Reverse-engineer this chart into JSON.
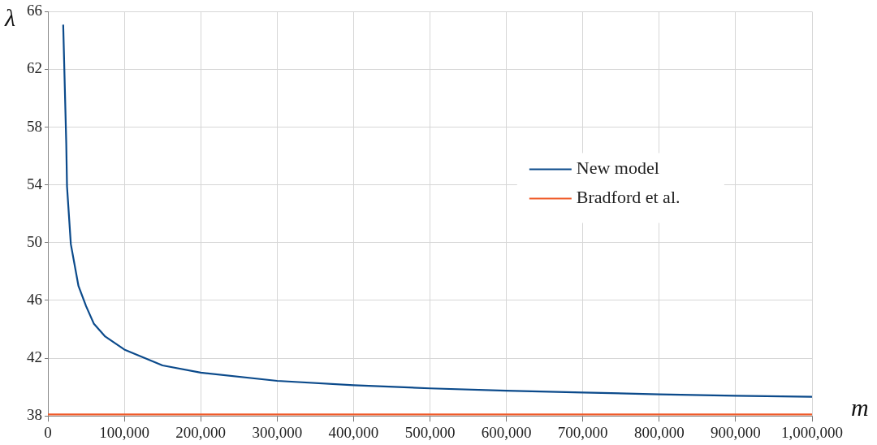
{
  "chart_data": {
    "type": "line",
    "xlabel": "m",
    "ylabel": "λ",
    "xlim": [
      0,
      1000000
    ],
    "xticks": [
      {
        "value": 0,
        "label": "0"
      },
      {
        "value": 100000,
        "label": "100,000"
      },
      {
        "value": 200000,
        "label": "200,000"
      },
      {
        "value": 300000,
        "label": "300,000"
      },
      {
        "value": 400000,
        "label": "400,000"
      },
      {
        "value": 500000,
        "label": "500,000"
      },
      {
        "value": 600000,
        "label": "600,000"
      },
      {
        "value": 700000,
        "label": "700,000"
      },
      {
        "value": 800000,
        "label": "800,000"
      },
      {
        "value": 900000,
        "label": "900,000"
      },
      {
        "value": 1000000,
        "label": "1,000,000"
      }
    ],
    "ylim": [
      38,
      66
    ],
    "yticks": [
      38,
      42,
      46,
      50,
      54,
      58,
      62,
      66
    ],
    "grid": true,
    "legend": "right",
    "marker": "none",
    "line_style": "solid",
    "series": [
      {
        "name": "New model",
        "color": "#0b4a8b",
        "x": [
          20000,
          24000,
          25000,
          30000,
          40000,
          50000,
          60000,
          75000,
          100000,
          150000,
          200000,
          300000,
          400000,
          500000,
          600000,
          700000,
          800000,
          900000,
          1000000
        ],
        "values": [
          65.1,
          56.9,
          53.9,
          49.9,
          47.0,
          45.6,
          44.4,
          43.5,
          42.6,
          41.5,
          41.0,
          40.43,
          40.13,
          39.91,
          39.75,
          39.62,
          39.5,
          39.4,
          39.33
        ]
      },
      {
        "name": "Bradford et al.",
        "color": "#f05a28",
        "x": [
          0,
          1000000
        ],
        "values": [
          38.1,
          38.1
        ]
      }
    ]
  }
}
